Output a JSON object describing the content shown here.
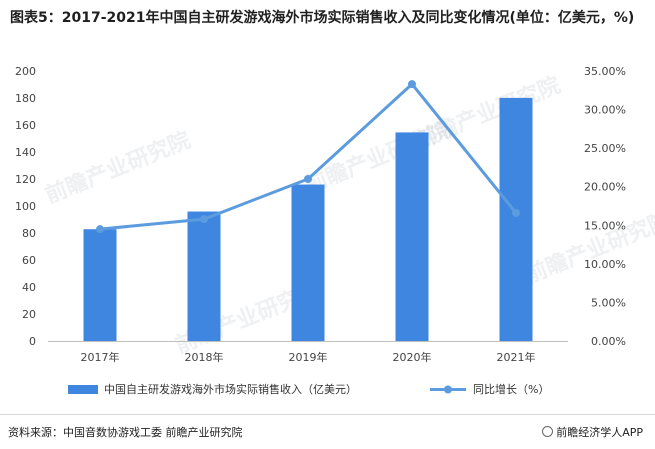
{
  "title": "图表5：2017-2021年中国自主研发游戏海外市场实际销售收入及同比变化情况(单位：亿美元，%)",
  "source": "资料来源：中国音数协游戏工委 前瞻产业研究院",
  "brand": "前瞻经济学人APP",
  "watermark": "前瞻产业研究院",
  "colors": {
    "bar": "#3f86e0",
    "line": "#5b9bde",
    "grid": "#e5e5e5"
  },
  "chart_data": {
    "type": "bar",
    "categories": [
      "2017年",
      "2018年",
      "2019年",
      "2020年",
      "2021年"
    ],
    "series": [
      {
        "name": "中国自主研发游戏海外市场实际销售收入（亿美元）",
        "type": "bar",
        "axis": "left",
        "values": [
          82.8,
          95.9,
          115.9,
          154.5,
          180.1
        ]
      },
      {
        "name": "同比增长（%）",
        "type": "line",
        "axis": "right",
        "values": [
          14.5,
          15.8,
          21.0,
          33.3,
          16.6
        ]
      }
    ],
    "y_left": {
      "min": 0,
      "max": 200,
      "step": 20,
      "ticks": [
        "0",
        "20",
        "40",
        "60",
        "80",
        "100",
        "120",
        "140",
        "160",
        "180",
        "200"
      ]
    },
    "y_right": {
      "min": 0,
      "max": 35,
      "step": 5,
      "ticks": [
        "0.00%",
        "5.00%",
        "10.00%",
        "15.00%",
        "20.00%",
        "25.00%",
        "30.00%",
        "35.00%"
      ]
    },
    "grid": false,
    "legend_position": "bottom"
  }
}
